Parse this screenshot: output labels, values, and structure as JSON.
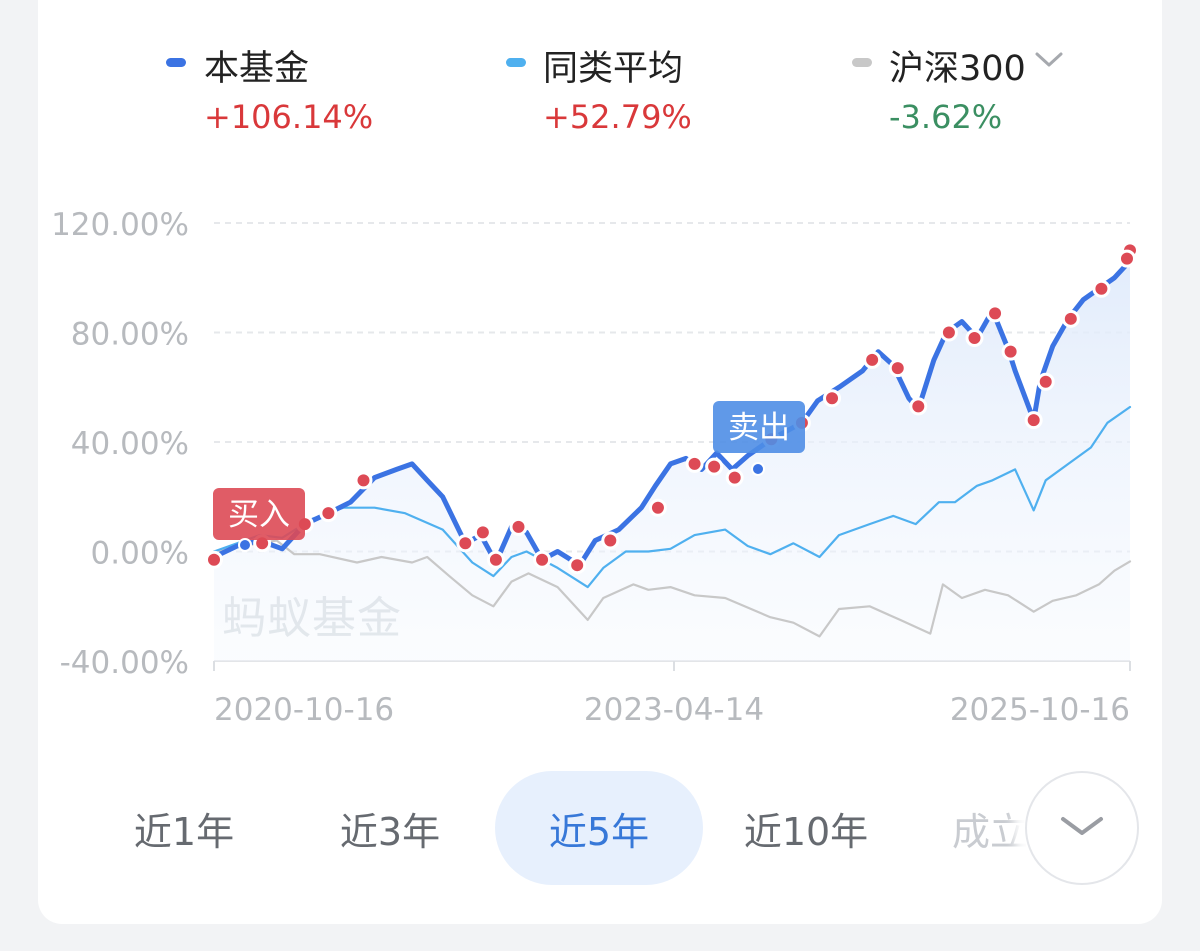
{
  "legend": [
    {
      "name": "本基金",
      "value": "+106.14%",
      "dash_color": "#3b73e3",
      "value_color": "#d9383a"
    },
    {
      "name": "同类平均",
      "value": "+52.79%",
      "dash_color": "#4fb0ef",
      "value_color": "#d9383a"
    },
    {
      "name": "沪深300",
      "value": "-3.62%",
      "dash_color": "#c8c8c8",
      "value_color": "#3b8f62"
    }
  ],
  "legend_dropdown_icon": "chevron-down-icon",
  "markers": {
    "buy_label": "买入",
    "sell_label": "卖出",
    "buy_color": "#dd4a55",
    "sell_color": "#4f8ee6"
  },
  "watermark": "蚂蚁基金",
  "tabs": [
    {
      "label": "近1年",
      "active": false
    },
    {
      "label": "近3年",
      "active": false
    },
    {
      "label": "近5年",
      "active": true
    },
    {
      "label": "近10年",
      "active": false
    },
    {
      "label": "成立",
      "active": false
    }
  ],
  "more_button_icon": "chevron-down-icon",
  "chart_data": {
    "type": "line",
    "y_unit": "%",
    "ylim": [
      -40,
      120
    ],
    "y_ticks": [
      "120.00%",
      "80.00%",
      "40.00%",
      "0.00%",
      "-40.00%"
    ],
    "y_tick_values": [
      120,
      80,
      40,
      0,
      -40
    ],
    "x_ticks": [
      "2020-10-16",
      "2023-04-14",
      "2025-10-16"
    ],
    "grid": true,
    "legend_position": "top",
    "x_range": [
      "2020-10-16",
      "2025-10-16"
    ],
    "series": [
      {
        "name": "本基金",
        "color": "#3b73e3",
        "points": [
          [
            "2020-10-16",
            -2
          ],
          [
            "2020-12-01",
            2
          ],
          [
            "2021-01-15",
            4
          ],
          [
            "2021-03-01",
            1
          ],
          [
            "2021-04-15",
            10
          ],
          [
            "2021-06-01",
            14
          ],
          [
            "2021-07-15",
            18
          ],
          [
            "2021-09-01",
            27
          ],
          [
            "2021-10-15",
            30
          ],
          [
            "2021-11-15",
            32
          ],
          [
            "2021-12-15",
            26
          ],
          [
            "2022-01-15",
            20
          ],
          [
            "2022-03-01",
            3
          ],
          [
            "2022-04-01",
            6
          ],
          [
            "2022-05-01",
            -4
          ],
          [
            "2022-06-01",
            9
          ],
          [
            "2022-07-01",
            7
          ],
          [
            "2022-08-01",
            -3
          ],
          [
            "2022-09-01",
            0
          ],
          [
            "2022-10-15",
            -5
          ],
          [
            "2022-11-15",
            4
          ],
          [
            "2023-01-01",
            8
          ],
          [
            "2023-02-15",
            16
          ],
          [
            "2023-03-15",
            24
          ],
          [
            "2023-04-14",
            32
          ],
          [
            "2023-05-15",
            34
          ],
          [
            "2023-06-15",
            30
          ],
          [
            "2023-07-15",
            36
          ],
          [
            "2023-08-15",
            30
          ],
          [
            "2023-09-15",
            35
          ],
          [
            "2023-11-01",
            41
          ],
          [
            "2024-01-01",
            47
          ],
          [
            "2024-02-01",
            55
          ],
          [
            "2024-03-15",
            60
          ],
          [
            "2024-05-01",
            66
          ],
          [
            "2024-06-01",
            73
          ],
          [
            "2024-07-01",
            68
          ],
          [
            "2024-08-01",
            56
          ],
          [
            "2024-08-20",
            52
          ],
          [
            "2024-09-20",
            70
          ],
          [
            "2024-10-15",
            80
          ],
          [
            "2024-11-15",
            84
          ],
          [
            "2024-12-15",
            78
          ],
          [
            "2025-01-15",
            88
          ],
          [
            "2025-02-15",
            74
          ],
          [
            "2025-03-01",
            66
          ],
          [
            "2025-04-07",
            48
          ],
          [
            "2025-04-20",
            62
          ],
          [
            "2025-05-15",
            75
          ],
          [
            "2025-06-15",
            85
          ],
          [
            "2025-07-15",
            92
          ],
          [
            "2025-08-15",
            96
          ],
          [
            "2025-09-15",
            100
          ],
          [
            "2025-10-16",
            106.14
          ]
        ]
      },
      {
        "name": "同类平均",
        "color": "#4fb0ef",
        "points": [
          [
            "2020-10-16",
            0
          ],
          [
            "2020-12-01",
            3
          ],
          [
            "2021-01-15",
            6
          ],
          [
            "2021-03-01",
            5
          ],
          [
            "2021-05-01",
            12
          ],
          [
            "2021-07-01",
            16
          ],
          [
            "2021-09-01",
            16
          ],
          [
            "2021-11-01",
            14
          ],
          [
            "2022-01-15",
            8
          ],
          [
            "2022-03-15",
            -4
          ],
          [
            "2022-04-26",
            -9
          ],
          [
            "2022-06-01",
            -2
          ],
          [
            "2022-07-01",
            0
          ],
          [
            "2022-09-01",
            -6
          ],
          [
            "2022-10-31",
            -13
          ],
          [
            "2022-12-01",
            -6
          ],
          [
            "2023-01-15",
            0
          ],
          [
            "2023-03-01",
            0
          ],
          [
            "2023-04-14",
            1
          ],
          [
            "2023-06-01",
            6
          ],
          [
            "2023-08-01",
            8
          ],
          [
            "2023-09-15",
            2
          ],
          [
            "2023-10-30",
            -1
          ],
          [
            "2023-12-15",
            3
          ],
          [
            "2024-02-05",
            -2
          ],
          [
            "2024-03-15",
            6
          ],
          [
            "2024-05-15",
            10
          ],
          [
            "2024-07-01",
            13
          ],
          [
            "2024-08-15",
            10
          ],
          [
            "2024-09-30",
            18
          ],
          [
            "2024-11-01",
            18
          ],
          [
            "2024-12-15",
            24
          ],
          [
            "2025-01-15",
            26
          ],
          [
            "2025-03-01",
            30
          ],
          [
            "2025-04-07",
            15
          ],
          [
            "2025-05-01",
            26
          ],
          [
            "2025-06-15",
            32
          ],
          [
            "2025-07-30",
            38
          ],
          [
            "2025-09-01",
            47
          ],
          [
            "2025-10-16",
            52.79
          ]
        ]
      },
      {
        "name": "沪深300",
        "color": "#c8c8c8",
        "points": [
          [
            "2020-10-16",
            0
          ],
          [
            "2020-12-15",
            2
          ],
          [
            "2021-02-18",
            4
          ],
          [
            "2021-03-25",
            -1
          ],
          [
            "2021-05-15",
            -1
          ],
          [
            "2021-07-28",
            -4
          ],
          [
            "2021-09-15",
            -2
          ],
          [
            "2021-11-15",
            -4
          ],
          [
            "2021-12-15",
            -2
          ],
          [
            "2022-01-28",
            -9
          ],
          [
            "2022-03-15",
            -16
          ],
          [
            "2022-04-26",
            -20
          ],
          [
            "2022-06-01",
            -11
          ],
          [
            "2022-07-05",
            -8
          ],
          [
            "2022-09-01",
            -13
          ],
          [
            "2022-10-31",
            -25
          ],
          [
            "2022-12-01",
            -17
          ],
          [
            "2023-01-30",
            -12
          ],
          [
            "2023-03-01",
            -14
          ],
          [
            "2023-04-14",
            -13
          ],
          [
            "2023-06-01",
            -16
          ],
          [
            "2023-08-01",
            -17
          ],
          [
            "2023-10-30",
            -24
          ],
          [
            "2023-12-15",
            -26
          ],
          [
            "2024-02-05",
            -31
          ],
          [
            "2024-03-15",
            -21
          ],
          [
            "2024-05-15",
            -20
          ],
          [
            "2024-07-15",
            -25
          ],
          [
            "2024-09-13",
            -30
          ],
          [
            "2024-10-08",
            -12
          ],
          [
            "2024-11-15",
            -17
          ],
          [
            "2024-12-31",
            -14
          ],
          [
            "2025-02-15",
            -16
          ],
          [
            "2025-04-07",
            -22
          ],
          [
            "2025-05-15",
            -18
          ],
          [
            "2025-07-01",
            -16
          ],
          [
            "2025-08-15",
            -12
          ],
          [
            "2025-09-15",
            -7
          ],
          [
            "2025-10-16",
            -3.62
          ]
        ]
      }
    ],
    "buy_sell_dots": [
      [
        "2020-10-16",
        -3
      ],
      [
        "2021-01-20",
        3
      ],
      [
        "2021-04-15",
        10
      ],
      [
        "2021-06-01",
        14
      ],
      [
        "2021-08-10",
        26
      ],
      [
        "2022-03-01",
        3
      ],
      [
        "2022-04-05",
        7
      ],
      [
        "2022-05-01",
        -3
      ],
      [
        "2022-06-15",
        9
      ],
      [
        "2022-08-01",
        -3
      ],
      [
        "2022-10-10",
        -5
      ],
      [
        "2022-12-15",
        4
      ],
      [
        "2023-03-20",
        16
      ],
      [
        "2023-06-01",
        32
      ],
      [
        "2023-07-10",
        31
      ],
      [
        "2023-08-20",
        27
      ],
      [
        "2023-11-01",
        41
      ],
      [
        "2024-01-01",
        47
      ],
      [
        "2024-03-01",
        56
      ],
      [
        "2024-05-20",
        70
      ],
      [
        "2024-07-10",
        67
      ],
      [
        "2024-08-20",
        53
      ],
      [
        "2024-10-20",
        80
      ],
      [
        "2024-12-10",
        78
      ],
      [
        "2025-01-20",
        87
      ],
      [
        "2025-02-20",
        73
      ],
      [
        "2025-04-07",
        48
      ],
      [
        "2025-05-01",
        62
      ],
      [
        "2025-06-20",
        85
      ],
      [
        "2025-08-20",
        96
      ],
      [
        "2025-10-16",
        110
      ],
      [
        "2025-10-10",
        107
      ]
    ]
  }
}
